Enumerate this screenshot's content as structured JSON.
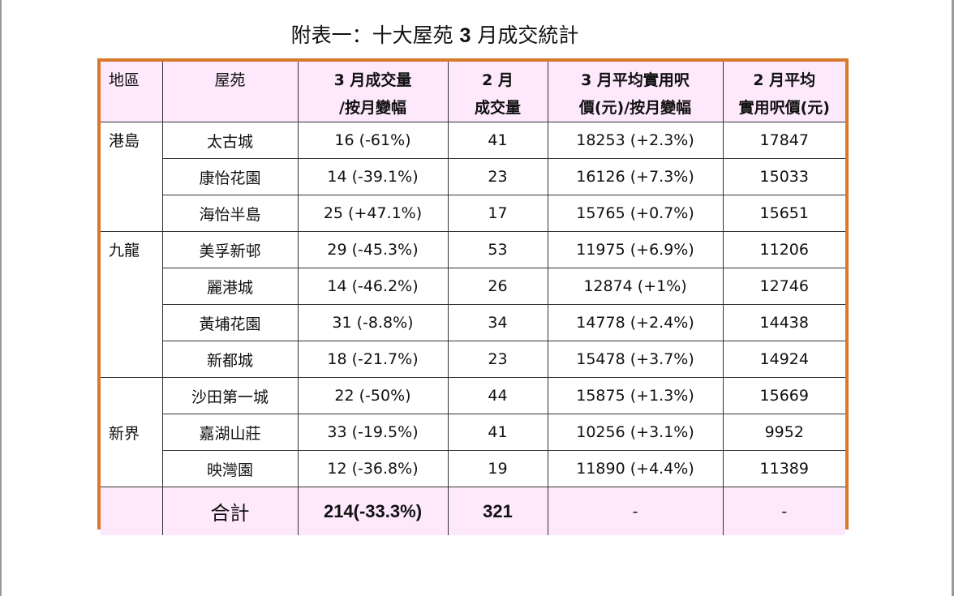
{
  "title": {
    "prefix": "附表一：十大屋苑 ",
    "month_num": "3",
    "suffix": " 月成交統計"
  },
  "header": {
    "region": "地區",
    "estate": "屋苑",
    "mar_volume_line1": "3 月成交量",
    "mar_volume_line2": "/按月變幅",
    "feb_volume_line1": "2 月",
    "feb_volume_line2": "成交量",
    "mar_price_line1": "3 月平均實用呎",
    "mar_price_line2": "價(元)/按月變幅",
    "feb_price_line1": "2 月平均",
    "feb_price_line2": "實用呎價(元)"
  },
  "regions": {
    "hk_island": "港島",
    "kowloon": "九龍",
    "nt": "新界"
  },
  "rows": [
    {
      "estate": "太古城",
      "mar_volume": "16 (-61%)",
      "feb_volume": "41",
      "mar_price": "18253 (+2.3%)",
      "feb_price": "17847"
    },
    {
      "estate": "康怡花園",
      "mar_volume": "14 (-39.1%)",
      "feb_volume": "23",
      "mar_price": "16126 (+7.3%)",
      "feb_price": "15033"
    },
    {
      "estate": "海怡半島",
      "mar_volume": "25 (+47.1%)",
      "feb_volume": "17",
      "mar_price": "15765 (+0.7%)",
      "feb_price": "15651"
    },
    {
      "estate": "美孚新邨",
      "mar_volume": "29 (-45.3%)",
      "feb_volume": "53",
      "mar_price": "11975 (+6.9%)",
      "feb_price": "11206"
    },
    {
      "estate": "麗港城",
      "mar_volume": "14 (-46.2%)",
      "feb_volume": "26",
      "mar_price": "12874 (+1%)",
      "feb_price": "12746"
    },
    {
      "estate": "黃埔花園",
      "mar_volume": "31 (-8.8%)",
      "feb_volume": "34",
      "mar_price": "14778 (+2.4%)",
      "feb_price": "14438"
    },
    {
      "estate": "新都城",
      "mar_volume": "18 (-21.7%)",
      "feb_volume": "23",
      "mar_price": "15478 (+3.7%)",
      "feb_price": "14924"
    },
    {
      "estate": "沙田第一城",
      "mar_volume": "22 (-50%)",
      "feb_volume": "44",
      "mar_price": "15875 (+1.3%)",
      "feb_price": "15669"
    },
    {
      "estate": "嘉湖山莊",
      "mar_volume": "33 (-19.5%)",
      "feb_volume": "41",
      "mar_price": "10256 (+3.1%)",
      "feb_price": "9952"
    },
    {
      "estate": "映灣園",
      "mar_volume": "12 (-36.8%)",
      "feb_volume": "19",
      "mar_price": "11890 (+4.4%)",
      "feb_price": "11389"
    }
  ],
  "total": {
    "label": "合計",
    "mar_volume": "214(-33.3%)",
    "feb_volume": "321",
    "mar_price": "-",
    "feb_price": "-"
  }
}
